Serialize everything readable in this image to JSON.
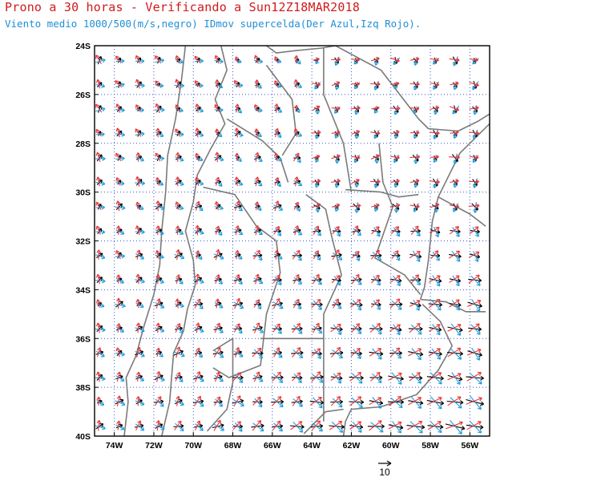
{
  "header": {
    "title": "Prono a 30 horas - Verificando a Sun12Z18MAR2018",
    "subtitle": "Viento medio 1000/500(m/s,negro) IDmov supercelda(Der Azul,Izq Rojo)."
  },
  "map": {
    "lon_range": [
      -75,
      -55
    ],
    "lat_range": [
      -40,
      -24
    ],
    "lat_labels": [
      "24S",
      "26S",
      "28S",
      "30S",
      "32S",
      "34S",
      "36S",
      "38S",
      "40S"
    ],
    "lat_values": [
      -24,
      -26,
      -28,
      -30,
      -32,
      -34,
      -36,
      -38,
      -40
    ],
    "lon_labels": [
      "74W",
      "72W",
      "70W",
      "68W",
      "66W",
      "64W",
      "62W",
      "60W",
      "58W",
      "56W"
    ],
    "lon_values": [
      -74,
      -72,
      -70,
      -68,
      -66,
      -64,
      -62,
      -60,
      -58,
      -56
    ],
    "grid": true,
    "colors": {
      "mean_wind": "#000000",
      "right_mover": "#1f9be0",
      "left_mover": "#e8343a",
      "borders": "#7a7a7a",
      "grid": "#3355cc"
    },
    "reference_vector": {
      "label": "10",
      "value_ms": 10
    }
  }
}
